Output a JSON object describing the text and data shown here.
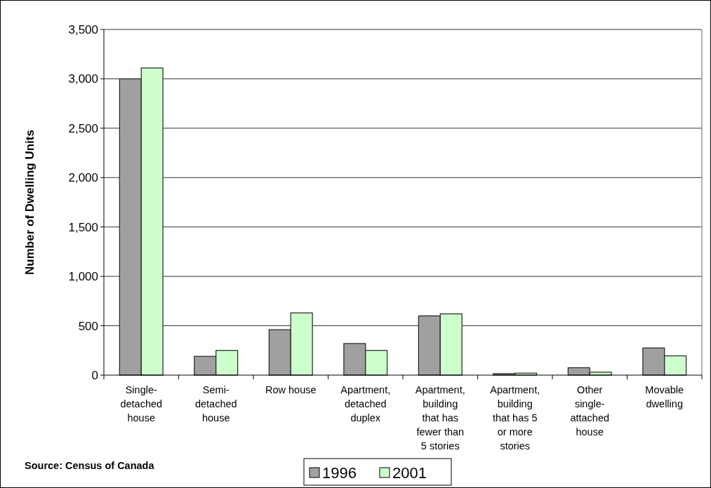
{
  "chart_data": {
    "type": "bar",
    "ylabel": "Number of Dwelling Units",
    "categories": [
      "Single-detached house",
      "Semi-detached house",
      "Row house",
      "Apartment, detached duplex",
      "Apartment, building that has fewer than 5 stories",
      "Apartment, building that has 5 or more stories",
      "Other single-attached house",
      "Movable dwelling"
    ],
    "series": [
      {
        "name": "1996",
        "color": "#a0a0a0",
        "values": [
          3000,
          190,
          460,
          320,
          600,
          15,
          75,
          275
        ]
      },
      {
        "name": "2001",
        "color": "#ccffcc",
        "values": [
          3110,
          250,
          630,
          250,
          620,
          20,
          30,
          195
        ]
      }
    ],
    "ylim": [
      0,
      3500
    ],
    "yticks": [
      0,
      {
        "value": 500,
        "label": "500"
      },
      {
        "value": 1000,
        "label": "1,000"
      },
      {
        "value": 1500,
        "label": "1,500"
      },
      {
        "value": 2000,
        "label": "2,000"
      },
      {
        "value": 2500,
        "label": "2,500"
      },
      {
        "value": 3000,
        "label": "3,000"
      },
      {
        "value": 3500,
        "label": "3,500"
      }
    ],
    "grid": "y",
    "legend": "bottom",
    "annotations": [
      "Source:  Census of Canada"
    ]
  }
}
